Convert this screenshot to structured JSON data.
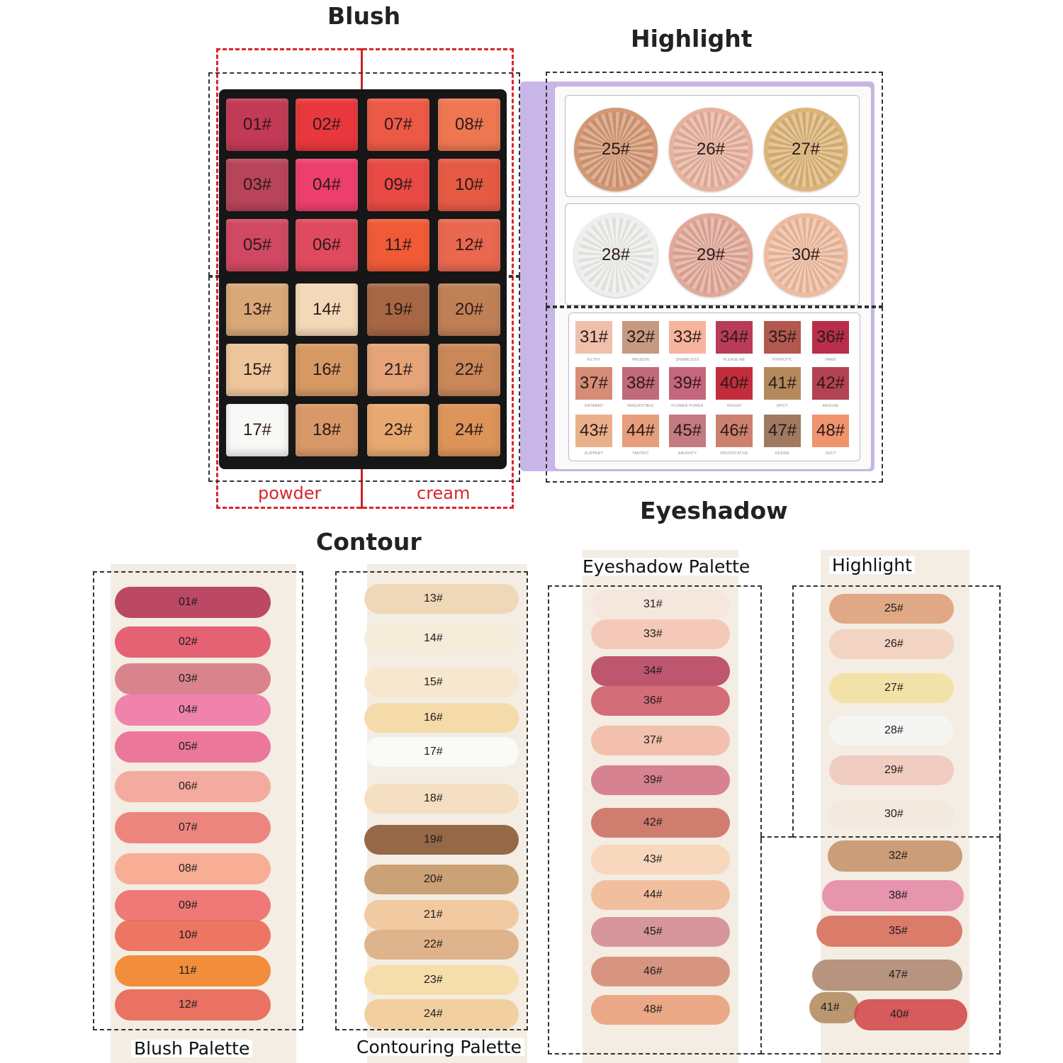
{
  "titles": {
    "blush": "Blush",
    "highlight": "Highlight",
    "eyeshadow": "Eyeshadow",
    "contour": "Contour",
    "powder": "powder",
    "cream": "cream"
  },
  "swatch_captions": {
    "blush_palette": "Blush Palette",
    "contouring_palette": "Contouring Palette",
    "eyeshadow_palette": "Eyeshadow Palette",
    "highlight": "Highlight"
  },
  "palette_pans": [
    {
      "label": "01#",
      "color": "#c23a55"
    },
    {
      "label": "02#",
      "color": "#e8383d"
    },
    {
      "label": "07#",
      "color": "#ec5a45"
    },
    {
      "label": "08#",
      "color": "#ee7752"
    },
    {
      "label": "03#",
      "color": "#b8445a"
    },
    {
      "label": "04#",
      "color": "#ee3f6c"
    },
    {
      "label": "09#",
      "color": "#e84a44"
    },
    {
      "label": "10#",
      "color": "#e65a44"
    },
    {
      "label": "05#",
      "color": "#d04862"
    },
    {
      "label": "06#",
      "color": "#e04a5e"
    },
    {
      "label": "11#",
      "color": "#f05a37"
    },
    {
      "label": "12#",
      "color": "#e9684f"
    },
    {
      "label": "13#",
      "color": "#d9a878"
    },
    {
      "label": "14#",
      "color": "#f4d9b8"
    },
    {
      "label": "19#",
      "color": "#a76745"
    },
    {
      "label": "20#",
      "color": "#c08055"
    },
    {
      "label": "15#",
      "color": "#efc59c"
    },
    {
      "label": "16#",
      "color": "#d79a63"
    },
    {
      "label": "21#",
      "color": "#e4a478"
    },
    {
      "label": "22#",
      "color": "#ca8859"
    },
    {
      "label": "17#",
      "color": "#f8f8f6"
    },
    {
      "label": "18#",
      "color": "#d99868"
    },
    {
      "label": "23#",
      "color": "#e7a970"
    },
    {
      "label": "24#",
      "color": "#dd9458"
    }
  ],
  "highlighters": [
    {
      "label": "25#",
      "color": "#d49874"
    },
    {
      "label": "26#",
      "color": "#e8b19d"
    },
    {
      "label": "27#",
      "color": "#dcb477"
    },
    {
      "label": "28#",
      "color": "#eeeeec"
    },
    {
      "label": "29#",
      "color": "#e2a898"
    },
    {
      "label": "30#",
      "color": "#eebb9e"
    }
  ],
  "eyeshadows": [
    {
      "label": "31#",
      "color": "#f0c0aa",
      "name": "FILTHY"
    },
    {
      "label": "32#",
      "color": "#c59a80",
      "name": "PASSION"
    },
    {
      "label": "33#",
      "color": "#f7b49c",
      "name": "SHAMELESS"
    },
    {
      "label": "34#",
      "color": "#b83c58",
      "name": "PLEASE ME"
    },
    {
      "label": "35#",
      "color": "#b1584f",
      "name": "HYPNOTIC"
    },
    {
      "label": "36#",
      "color": "#b82e4a",
      "name": "HARD"
    },
    {
      "label": "37#",
      "color": "#d68d77",
      "name": "UNTAMED"
    },
    {
      "label": "38#",
      "color": "#c16a7c",
      "name": "IRRESISTIBLE"
    },
    {
      "label": "39#",
      "color": "#c6667c",
      "name": "FLOWER POWER"
    },
    {
      "label": "40#",
      "color": "#c12d3c",
      "name": "ROUGH"
    },
    {
      "label": "41#",
      "color": "#b48a5c",
      "name": "SPICY"
    },
    {
      "label": "42#",
      "color": "#b34254",
      "name": "AROUSE"
    },
    {
      "label": "43#",
      "color": "#eab08a",
      "name": "SLIPPERY"
    },
    {
      "label": "44#",
      "color": "#e79e7a",
      "name": "TANTRIC"
    },
    {
      "label": "45#",
      "color": "#c37a80",
      "name": "NAUGHTY"
    },
    {
      "label": "46#",
      "color": "#cb816e",
      "name": "PROVOCATIVE"
    },
    {
      "label": "47#",
      "color": "#9f7a61",
      "name": "DESIRE"
    },
    {
      "label": "48#",
      "color": "#ef946d",
      "name": "JUICY"
    }
  ],
  "swatches_blush": [
    {
      "label": "01#",
      "color": "#b63a5a"
    },
    {
      "label": "02#",
      "color": "#e3566a"
    },
    {
      "label": "03#",
      "color": "#d77a84"
    },
    {
      "label": "04#",
      "color": "#ef79a6"
    },
    {
      "label": "05#",
      "color": "#ea6e94"
    },
    {
      "label": "06#",
      "color": "#f3a59a"
    },
    {
      "label": "07#",
      "color": "#ed7c76"
    },
    {
      "label": "08#",
      "color": "#f8a78e"
    },
    {
      "label": "09#",
      "color": "#ef6f6e"
    },
    {
      "label": "10#",
      "color": "#ec6a58"
    },
    {
      "label": "11#",
      "color": "#f2842d"
    },
    {
      "label": "12#",
      "color": "#e86757"
    }
  ],
  "swatches_contour": [
    {
      "label": "13#",
      "color": "#efd6b3"
    },
    {
      "label": "14#",
      "color": "#f6ecd9"
    },
    {
      "label": "15#",
      "color": "#f6e6cc"
    },
    {
      "label": "16#",
      "color": "#f4d9a4"
    },
    {
      "label": "17#",
      "color": "#fbfbf8"
    },
    {
      "label": "18#",
      "color": "#f4ddbf"
    },
    {
      "label": "19#",
      "color": "#8d5c3a"
    },
    {
      "label": "20#",
      "color": "#c89a6d"
    },
    {
      "label": "21#",
      "color": "#f1c79c"
    },
    {
      "label": "22#",
      "color": "#ddae83"
    },
    {
      "label": "23#",
      "color": "#f6dca7"
    },
    {
      "label": "24#",
      "color": "#f2cc98"
    }
  ],
  "swatches_eyeshadow": [
    {
      "label": "31#",
      "color": "#f5e6dd"
    },
    {
      "label": "33#",
      "color": "#f5c6b6"
    },
    {
      "label": "34#",
      "color": "#b94964"
    },
    {
      "label": "36#",
      "color": "#d0626e"
    },
    {
      "label": "37#",
      "color": "#f2bca7"
    },
    {
      "label": "39#",
      "color": "#d57889"
    },
    {
      "label": "42#",
      "color": "#cc7365"
    },
    {
      "label": "43#",
      "color": "#f7d6b8"
    },
    {
      "label": "44#",
      "color": "#f2bb98"
    },
    {
      "label": "45#",
      "color": "#d58e96"
    },
    {
      "label": "46#",
      "color": "#d58d78"
    },
    {
      "label": "48#",
      "color": "#eaa27e"
    }
  ],
  "swatches_highlight": [
    {
      "label": "25#",
      "color": "#dfa27d"
    },
    {
      "label": "26#",
      "color": "#f3d0bf"
    },
    {
      "label": "27#",
      "color": "#f3e1a2"
    },
    {
      "label": "28#",
      "color": "#f5f5f5"
    },
    {
      "label": "29#",
      "color": "#f1c9bd"
    },
    {
      "label": "30#",
      "color": "#f3e8dd"
    }
  ],
  "swatches_glitter": [
    {
      "label": "32#",
      "color": "#c7936c"
    },
    {
      "label": "38#",
      "color": "#e58aa7"
    },
    {
      "label": "35#",
      "color": "#d86f5c"
    },
    {
      "label": "47#",
      "color": "#b08a73"
    },
    {
      "label": "41#",
      "color": "#b58d63"
    },
    {
      "label": "40#",
      "color": "#d24a4c"
    }
  ]
}
